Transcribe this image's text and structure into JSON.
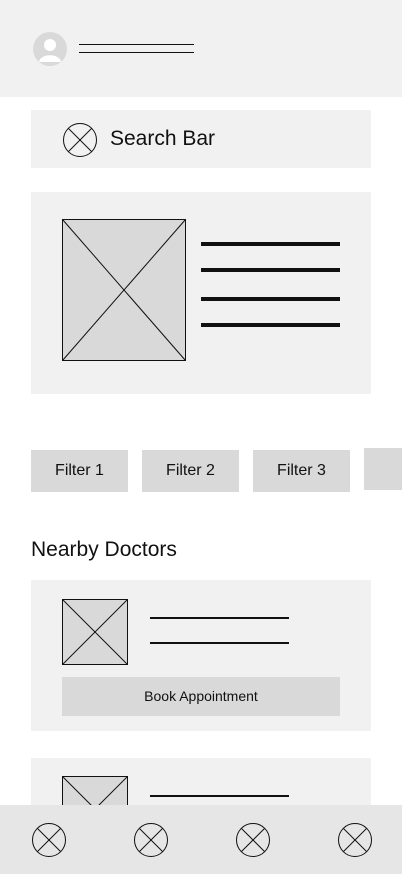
{
  "search": {
    "label": "Search Bar"
  },
  "filters": [
    "Filter 1",
    "Filter 2",
    "Filter 3",
    ""
  ],
  "section": {
    "title": "Nearby Doctors"
  },
  "doctor_cards": [
    {
      "button_label": "Book Appointment"
    }
  ],
  "nav": {
    "items": [
      "nav-item-1-icon",
      "nav-item-2-icon",
      "nav-item-3-icon",
      "nav-item-4-icon"
    ]
  },
  "colors": {
    "panel": "#f1f1f1",
    "placeholder": "#d9d9d9",
    "navbar": "#e6e6e6",
    "stroke": "#111111"
  }
}
